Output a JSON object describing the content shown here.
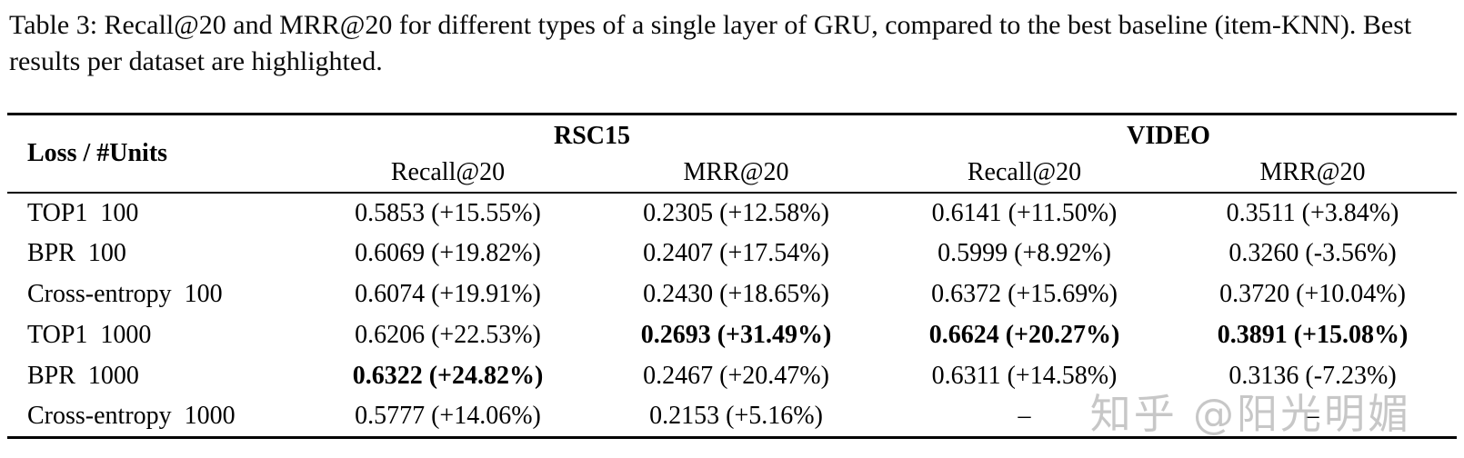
{
  "caption": "Table 3: Recall@20 and MRR@20 for different types of a single layer of GRU, compared to the best baseline (item-KNN). Best results per dataset are highlighted.",
  "table": {
    "corner_header": "Loss / #Units",
    "groups": [
      {
        "label": "RSC15"
      },
      {
        "label": "VIDEO"
      }
    ],
    "subheaders": [
      "Recall@20",
      "MRR@20",
      "Recall@20",
      "MRR@20"
    ],
    "rows": [
      {
        "label": "TOP1  100",
        "cells": [
          {
            "text": "0.5853 (+15.55%)",
            "bold": false
          },
          {
            "text": "0.2305 (+12.58%)",
            "bold": false
          },
          {
            "text": "0.6141 (+11.50%)",
            "bold": false
          },
          {
            "text": "0.3511 (+3.84%)",
            "bold": false
          }
        ]
      },
      {
        "label": "BPR  100",
        "cells": [
          {
            "text": "0.6069 (+19.82%)",
            "bold": false
          },
          {
            "text": "0.2407 (+17.54%)",
            "bold": false
          },
          {
            "text": "0.5999 (+8.92%)",
            "bold": false
          },
          {
            "text": "0.3260 (-3.56%)",
            "bold": false
          }
        ]
      },
      {
        "label": "Cross-entropy  100",
        "cells": [
          {
            "text": "0.6074 (+19.91%)",
            "bold": false
          },
          {
            "text": "0.2430 (+18.65%)",
            "bold": false
          },
          {
            "text": "0.6372 (+15.69%)",
            "bold": false
          },
          {
            "text": "0.3720 (+10.04%)",
            "bold": false
          }
        ]
      },
      {
        "label": "TOP1  1000",
        "cells": [
          {
            "text": "0.6206 (+22.53%)",
            "bold": false
          },
          {
            "text": "0.2693 (+31.49%)",
            "bold": true
          },
          {
            "text": "0.6624 (+20.27%)",
            "bold": true
          },
          {
            "text": "0.3891 (+15.08%)",
            "bold": true
          }
        ]
      },
      {
        "label": "BPR  1000",
        "cells": [
          {
            "text": "0.6322 (+24.82%)",
            "bold": true
          },
          {
            "text": "0.2467 (+20.47%)",
            "bold": false
          },
          {
            "text": "0.6311 (+14.58%)",
            "bold": false
          },
          {
            "text": "0.3136 (-7.23%)",
            "bold": false
          }
        ]
      },
      {
        "label": "Cross-entropy  1000",
        "cells": [
          {
            "text": "0.5777 (+14.06%)",
            "bold": false
          },
          {
            "text": "0.2153 (+5.16%)",
            "bold": false
          },
          {
            "text": "–",
            "bold": false
          },
          {
            "text": "–",
            "bold": false
          }
        ]
      }
    ]
  },
  "watermark": "知乎 @阳光明媚",
  "colors": {
    "background": "#ffffff",
    "text": "#000000",
    "rule": "#000000",
    "watermark": "#bbbbbb"
  }
}
